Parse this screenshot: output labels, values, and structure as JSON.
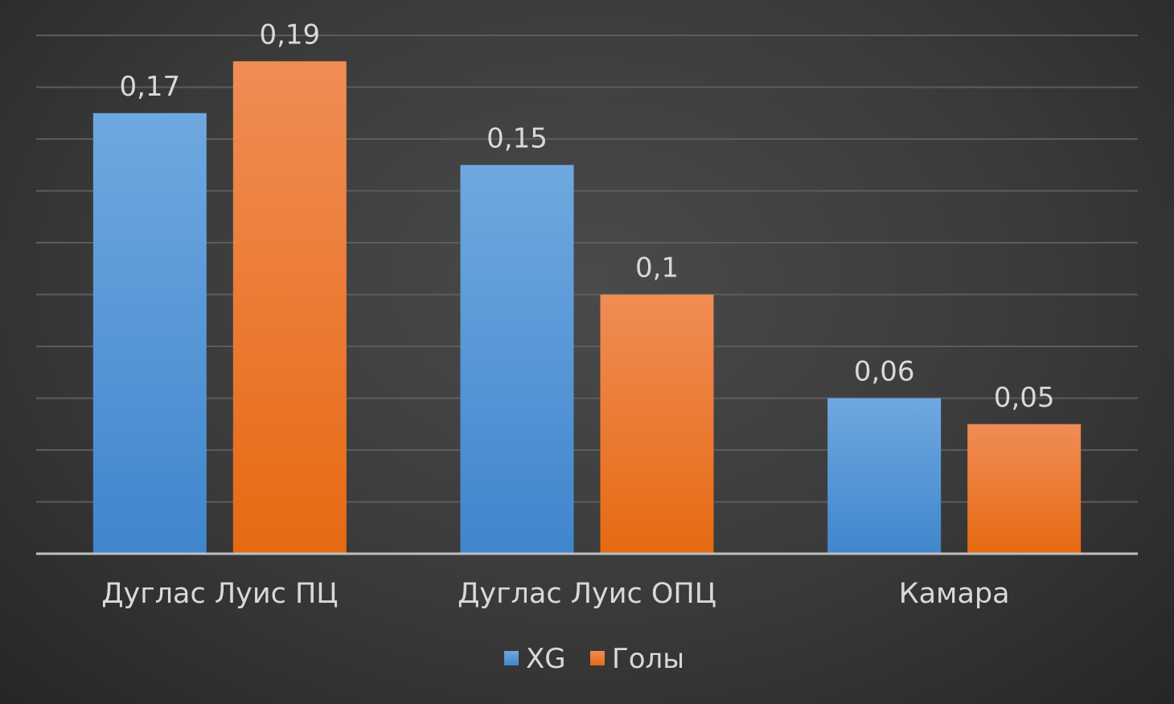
{
  "chart_data": {
    "type": "bar",
    "categories": [
      "Дуглас Луис ПЦ",
      "Дуглас Луис ОПЦ",
      "Камара"
    ],
    "series": [
      {
        "name": "XG",
        "values": [
          0.17,
          0.15,
          0.06
        ],
        "labels": [
          "0,17",
          "0,15",
          "0,06"
        ],
        "color": "#4f94d8"
      },
      {
        "name": "Голы",
        "values": [
          0.19,
          0.1,
          0.05
        ],
        "labels": [
          "0,19",
          "0,1",
          "0,05"
        ],
        "color": "#ee7a26"
      }
    ],
    "ylim": [
      0,
      0.2
    ],
    "grid": true,
    "legend_position": "bottom",
    "title": "",
    "xlabel": "",
    "ylabel": ""
  }
}
